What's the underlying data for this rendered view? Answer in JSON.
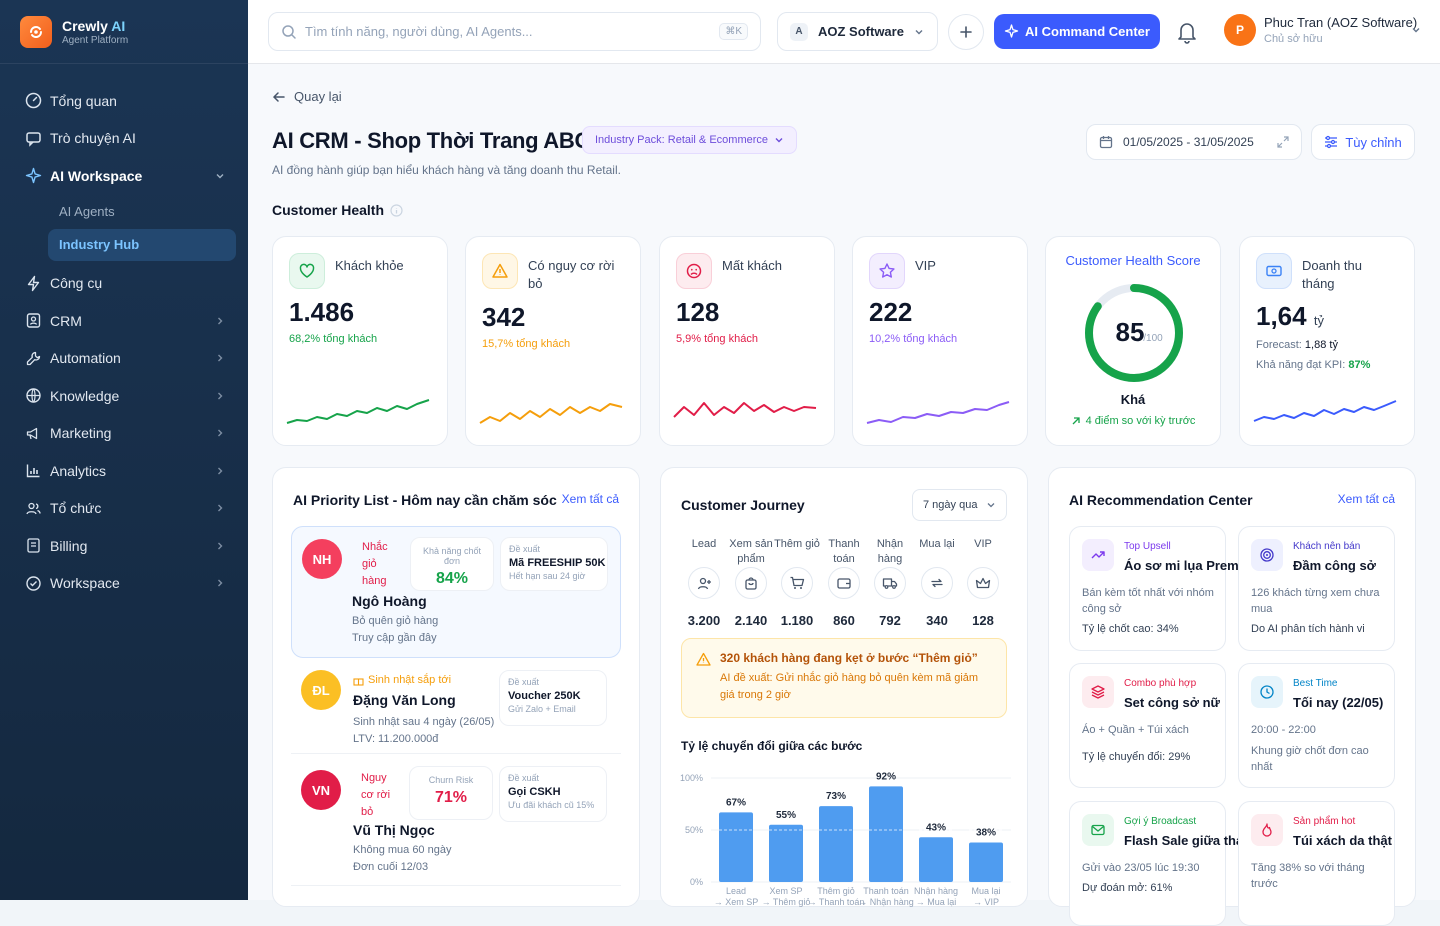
{
  "brand": {
    "name": "Crewly",
    "name_ai": "AI",
    "sub": "Agent Platform"
  },
  "nav": {
    "overview": "Tổng quan",
    "chat": "Trò chuyện AI",
    "workspace_ai": "AI Workspace",
    "ai_agents": "AI Agents",
    "industry_hub": "Industry Hub",
    "tools": "Công cụ",
    "crm": "CRM",
    "automation": "Automation",
    "knowledge": "Knowledge",
    "marketing": "Marketing",
    "analytics": "Analytics",
    "org": "Tổ chức",
    "billing": "Billing",
    "workspace": "Workspace"
  },
  "topbar": {
    "search_placeholder": "Tìm tính năng, người dùng, AI Agents...",
    "shortcut": "⌘K",
    "workspace_initial": "A",
    "workspace_name": "AOZ Software",
    "command_center": "AI Command Center",
    "user_initial": "P",
    "user_name": "Phuc Tran (AOZ Software)",
    "user_role": "Chủ sở hữu"
  },
  "page": {
    "back": "Quay lại",
    "title": "AI CRM - Shop Thời Trang ABC",
    "pack": "Industry Pack: Retail & Ecommerce",
    "subtitle": "AI đồng hành giúp bạn hiểu khách hàng và tăng doanh thu Retail.",
    "date_range": "01/05/2025 - 31/05/2025",
    "customize": "Tùy chỉnh",
    "section": "Customer Health"
  },
  "kpis": [
    {
      "label": "Khách khỏe",
      "value": "1.486",
      "sub": "68,2% tổng khách",
      "color": "#16a34a"
    },
    {
      "label": "Có nguy cơ rời bỏ",
      "value": "342",
      "sub": "15,7% tổng khách",
      "color": "#f59e0b"
    },
    {
      "label": "Mất khách",
      "value": "128",
      "sub": "5,9% tổng khách",
      "color": "#e11d48"
    },
    {
      "label": "VIP",
      "value": "222",
      "sub": "10,2% tổng khách",
      "color": "#8b5cf6"
    }
  ],
  "health_score": {
    "title": "Customer Health Score",
    "value": "85",
    "max": "/100",
    "score": 85,
    "grade": "Khá",
    "delta": "4 điểm so với kỳ trước"
  },
  "revenue": {
    "label": "Doanh thu tháng",
    "value": "1,64",
    "unit": "tỷ",
    "forecast_label": "Forecast:",
    "forecast": "1,88 tỷ",
    "kpi_label": "Khả năng đạt KPI:",
    "kpi": "87%"
  },
  "priority": {
    "title": "AI Priority List - Hôm nay cần chăm sóc",
    "view_all": "Xem tất cả",
    "items": [
      {
        "initials": "NH",
        "tag": "Nhắc giỏ hàng",
        "name": "Ngô Hoàng",
        "line1": "Bỏ quên giỏ hàng",
        "line2": "Truy cập gần đây",
        "metric_label": "Khả năng chốt đơn",
        "metric": "84%",
        "sugg_label": "Đề xuất",
        "sugg": "Mã FREESHIP 50K",
        "sugg_sub": "Hết hạn sau 24 giờ"
      },
      {
        "initials": "ĐL",
        "tag": "Sinh nhật sắp tới",
        "name": "Đặng Văn Long",
        "line1": "Sinh nhật sau 4 ngày (26/05)",
        "line2": "LTV: 11.200.000đ",
        "sugg_label": "Đề xuất",
        "sugg": "Voucher 250K",
        "sugg_sub": "Gửi Zalo + Email"
      },
      {
        "initials": "VN",
        "tag": "Nguy cơ rời bỏ",
        "name": "Vũ Thị Ngọc",
        "line1": "Không mua 60 ngày",
        "line2": "Đơn cuối 12/03",
        "metric_label": "Churn Risk",
        "metric": "71%",
        "sugg_label": "Đề xuất",
        "sugg": "Gọi CSKH",
        "sugg_sub": "Ưu đãi khách cũ 15%"
      }
    ]
  },
  "journey": {
    "title": "Customer Journey",
    "range": "7 ngày qua",
    "steps": [
      {
        "label": "Lead",
        "value": "3.200",
        "icon": "user-plus-icon"
      },
      {
        "label": "Xem sản phẩm",
        "value": "2.140",
        "icon": "bag-icon"
      },
      {
        "label": "Thêm giỏ",
        "value": "1.180",
        "icon": "cart-icon"
      },
      {
        "label": "Thanh toán",
        "value": "860",
        "icon": "wallet-icon"
      },
      {
        "label": "Nhận hàng",
        "value": "792",
        "icon": "truck-icon"
      },
      {
        "label": "Mua lại",
        "value": "340",
        "icon": "repeat-icon"
      },
      {
        "label": "VIP",
        "value": "128",
        "icon": "crown-icon"
      }
    ],
    "alert_title": "320 khách hàng đang kẹt ở bước “Thêm giỏ”",
    "alert_body": "AI đề xuất: Gửi nhắc giỏ hàng bỏ quên kèm mã giảm giá trong 2 giờ"
  },
  "chart_data": {
    "type": "bar",
    "title": "Tỷ lệ chuyển đổi giữa các bước",
    "categories": [
      "Lead → Xem SP",
      "Xem SP → Thêm giỏ",
      "Thêm giỏ → Thanh toán",
      "Thanh toán → Nhận hàng",
      "Nhận hàng → Mua lại",
      "Mua lại → VIP"
    ],
    "values": [
      67,
      55,
      73,
      92,
      43,
      38
    ],
    "value_labels": [
      "67%",
      "55%",
      "73%",
      "92%",
      "43%",
      "38%"
    ],
    "yticks": [
      "100%",
      "50%",
      "0%"
    ],
    "ylim": [
      0,
      100
    ],
    "bar_color": "#4f9cf0"
  },
  "recommend": {
    "title": "AI Recommendation Center",
    "view_all": "Xem tất cả",
    "cards": [
      {
        "tag": "Top Upsell",
        "tag_color": "#7c3aed",
        "title": "Áo sơ mi lụa Premium",
        "desc": "Bán kèm tốt nhất với nhóm công sở",
        "foot": "Tỷ lệ chốt cao: 34%",
        "icon": "trend-up-icon"
      },
      {
        "tag": "Khách nên bán",
        "tag_color": "#4338ca",
        "title": "Đầm công sở",
        "desc": "126 khách từng xem chưa mua",
        "foot": "Do AI phân tích hành vi",
        "icon": "target-icon"
      },
      {
        "tag": "Combo phù hợp",
        "tag_color": "#e11d48",
        "title": "Set công sở nữ",
        "desc": "Áo + Quần + Túi xách",
        "foot": "Tỷ lệ chuyển đổi: 29%",
        "icon": "layers-icon"
      },
      {
        "tag": "Best Time",
        "tag_color": "#0284c7",
        "title": "Tối nay (22/05)",
        "desc": "20:00 - 22:00",
        "desc2": "Khung giờ chốt đơn cao nhất",
        "icon": "clock-icon"
      },
      {
        "tag": "Gợi ý Broadcast",
        "tag_color": "#16a34a",
        "title": "Flash Sale giữa tháng",
        "desc": "Gửi vào 23/05 lúc 19:30",
        "foot": "Dự đoán mở: 61%",
        "icon": "mail-icon"
      },
      {
        "tag": "Sản phẩm hot",
        "tag_color": "#e11d48",
        "title": "Túi xách da thật",
        "desc": "Tăng 38% so với tháng trước",
        "icon": "flame-icon"
      }
    ]
  }
}
